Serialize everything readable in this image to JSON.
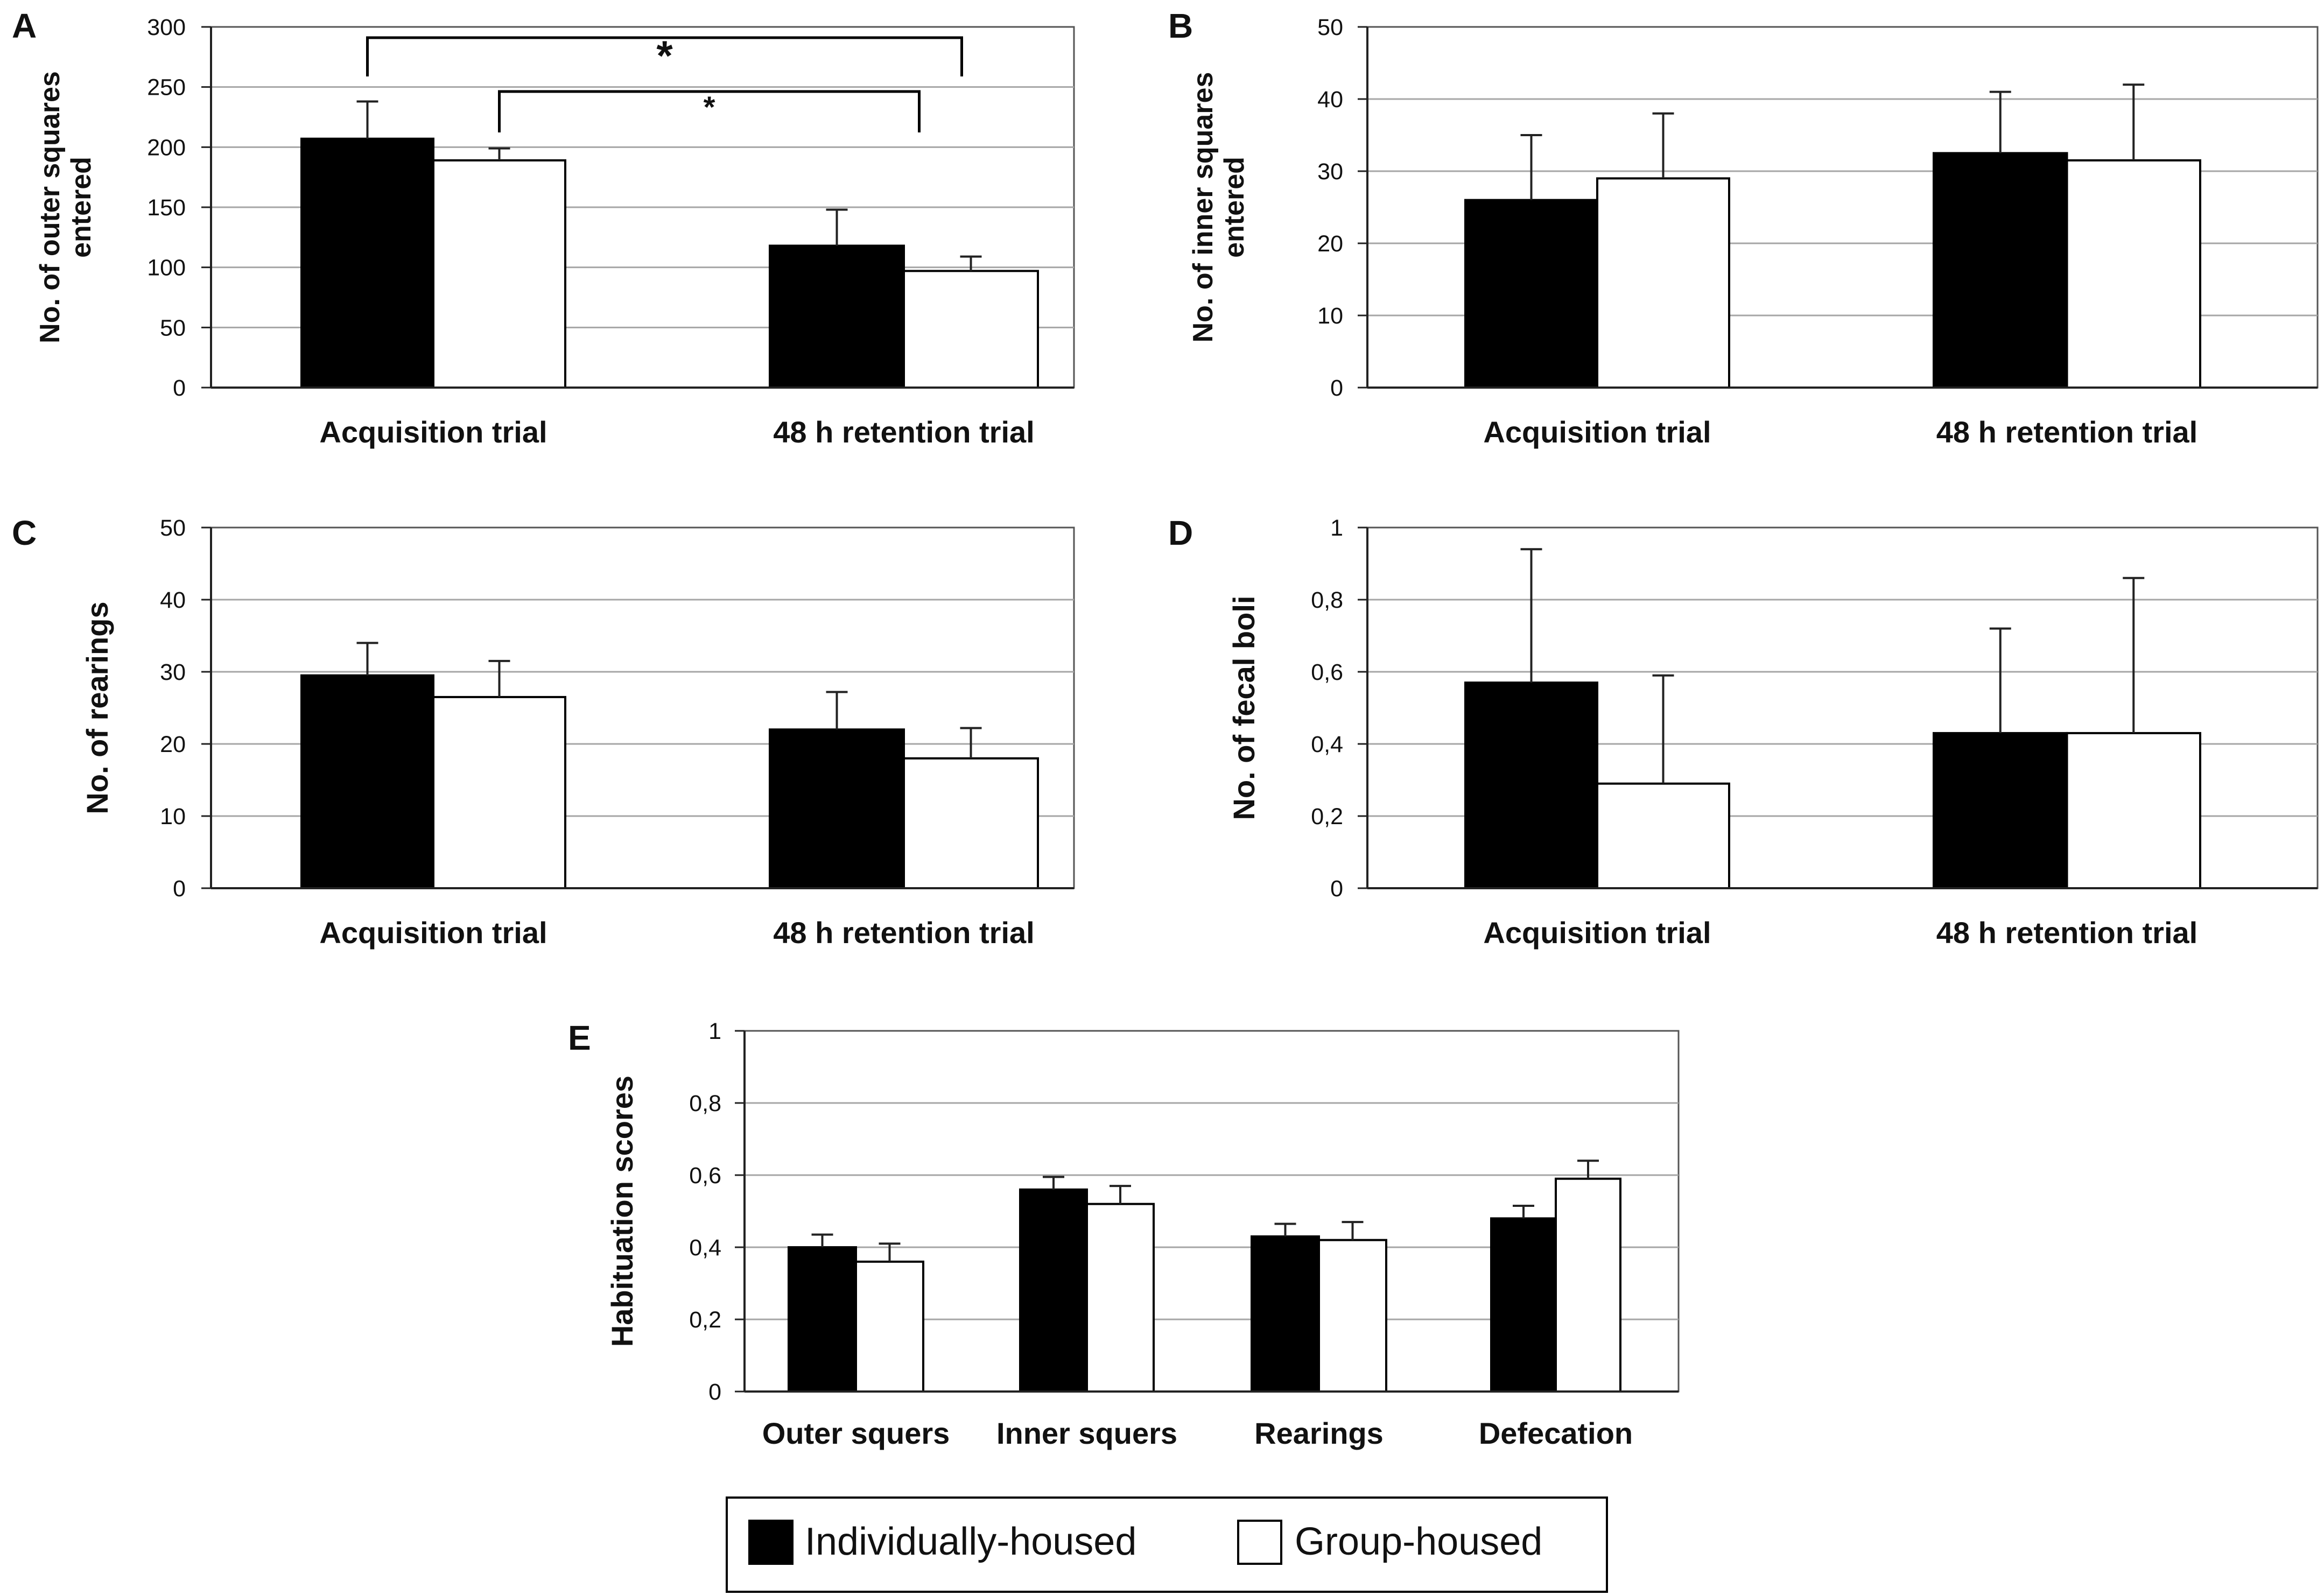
{
  "legend": {
    "series": [
      {
        "name": "Individually-housed",
        "color": "#000000"
      },
      {
        "name": "Group-housed",
        "color": "#ffffff"
      }
    ]
  },
  "chart_data": [
    {
      "panel": "A",
      "type": "bar",
      "categories": [
        "Acquisition trial",
        "48 h retention trial"
      ],
      "series": [
        {
          "name": "Individually-housed",
          "values": [
            207,
            118
          ],
          "errors": [
            31,
            30
          ]
        },
        {
          "name": "Group-housed",
          "values": [
            189,
            97
          ],
          "errors": [
            10,
            12
          ]
        }
      ],
      "ylabel": "No. of outer squares entered",
      "ylim": [
        0,
        300
      ],
      "yticks": [
        "0",
        "50",
        "100",
        "150",
        "200",
        "250",
        "300"
      ],
      "annotations": [
        {
          "text": "*",
          "from": "Individually-housed / Acquisition trial",
          "to": "Individually-housed / 48 h retention trial"
        },
        {
          "text": "*",
          "from": "Group-housed / Acquisition trial",
          "to": "Group-housed / 48 h retention trial"
        }
      ]
    },
    {
      "panel": "B",
      "type": "bar",
      "categories": [
        "Acquisition trial",
        "48 h retention trial"
      ],
      "series": [
        {
          "name": "Individually-housed",
          "values": [
            26,
            32.5
          ],
          "errors": [
            9,
            8.5
          ]
        },
        {
          "name": "Group-housed",
          "values": [
            29,
            31.5
          ],
          "errors": [
            9,
            10.5
          ]
        }
      ],
      "ylabel": "No. of inner squares entered",
      "ylim": [
        0,
        50
      ],
      "yticks": [
        "0",
        "10",
        "20",
        "30",
        "40",
        "50"
      ]
    },
    {
      "panel": "C",
      "type": "bar",
      "categories": [
        "Acquisition trial",
        "48 h retention trial"
      ],
      "series": [
        {
          "name": "Individually-housed",
          "values": [
            29.5,
            22
          ],
          "errors": [
            4.5,
            5.2
          ]
        },
        {
          "name": "Group-housed",
          "values": [
            26.5,
            18
          ],
          "errors": [
            5,
            4.2
          ]
        }
      ],
      "ylabel": "No. of rearings",
      "ylim": [
        0,
        50
      ],
      "yticks": [
        "0",
        "10",
        "20",
        "30",
        "40",
        "50"
      ]
    },
    {
      "panel": "D",
      "type": "bar",
      "categories": [
        "Acquisition trial",
        "48 h retention trial"
      ],
      "series": [
        {
          "name": "Individually-housed",
          "values": [
            0.57,
            0.43
          ],
          "errors": [
            0.37,
            0.29
          ]
        },
        {
          "name": "Group-housed",
          "values": [
            0.29,
            0.43
          ],
          "errors": [
            0.3,
            0.43
          ]
        }
      ],
      "ylabel": "No. of fecal boli",
      "ylim": [
        0,
        1
      ],
      "yticks": [
        "0",
        "0,2",
        "0,4",
        "0,6",
        "0,8",
        "1"
      ]
    },
    {
      "panel": "E",
      "type": "bar",
      "categories": [
        "Outer squers",
        "Inner squers",
        "Rearings",
        "Defecation"
      ],
      "series": [
        {
          "name": "Individually-housed",
          "values": [
            0.4,
            0.56,
            0.43,
            0.48
          ],
          "errors": [
            0.035,
            0.035,
            0.035,
            0.035
          ]
        },
        {
          "name": "Group-housed",
          "values": [
            0.36,
            0.52,
            0.42,
            0.59
          ],
          "errors": [
            0.05,
            0.05,
            0.05,
            0.05
          ]
        }
      ],
      "ylabel": "Habituation scores",
      "ylim": [
        0,
        1
      ],
      "yticks": [
        "0",
        "0,2",
        "0,4",
        "0,6",
        "0,8",
        "1"
      ]
    }
  ]
}
